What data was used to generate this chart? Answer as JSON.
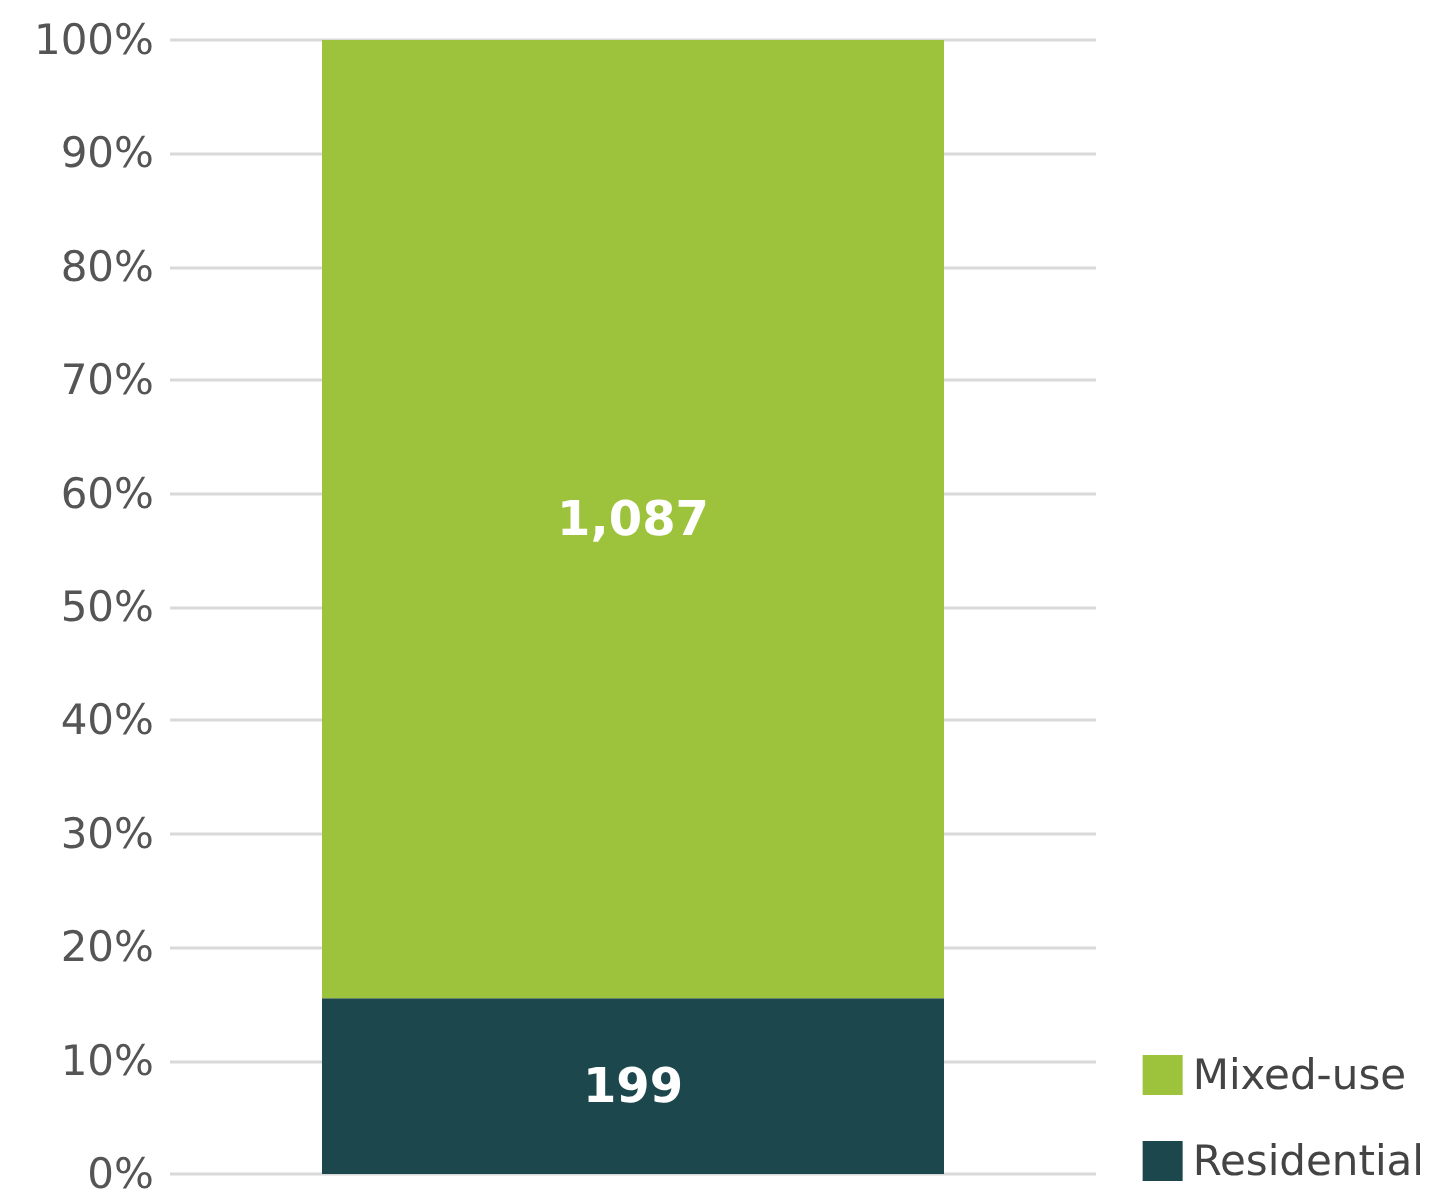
{
  "chart_data": {
    "type": "bar",
    "stacked": true,
    "categories": [
      null
    ],
    "series": [
      {
        "name": "Residential",
        "color": "#1b474d",
        "values": [
          15.5
        ]
      },
      {
        "name": "Mixed-use",
        "color": "#9dc33c",
        "values": [
          84.5
        ]
      }
    ],
    "annotations": [
      "199",
      "1,087"
    ],
    "ylim": [
      0,
      100
    ],
    "yticks": [
      {
        "value": 0,
        "label": "0%"
      },
      {
        "value": 10,
        "label": "10%"
      },
      {
        "value": 20,
        "label": "20%"
      },
      {
        "value": 30,
        "label": "30%"
      },
      {
        "value": 40,
        "label": "40%"
      },
      {
        "value": 50,
        "label": "50%"
      },
      {
        "value": 60,
        "label": "60%"
      },
      {
        "value": 70,
        "label": "70%"
      },
      {
        "value": 80,
        "label": "80%"
      },
      {
        "value": 90,
        "label": "90%"
      },
      {
        "value": 100,
        "label": "100%"
      }
    ],
    "grid": "y",
    "legend": "bottom right"
  }
}
